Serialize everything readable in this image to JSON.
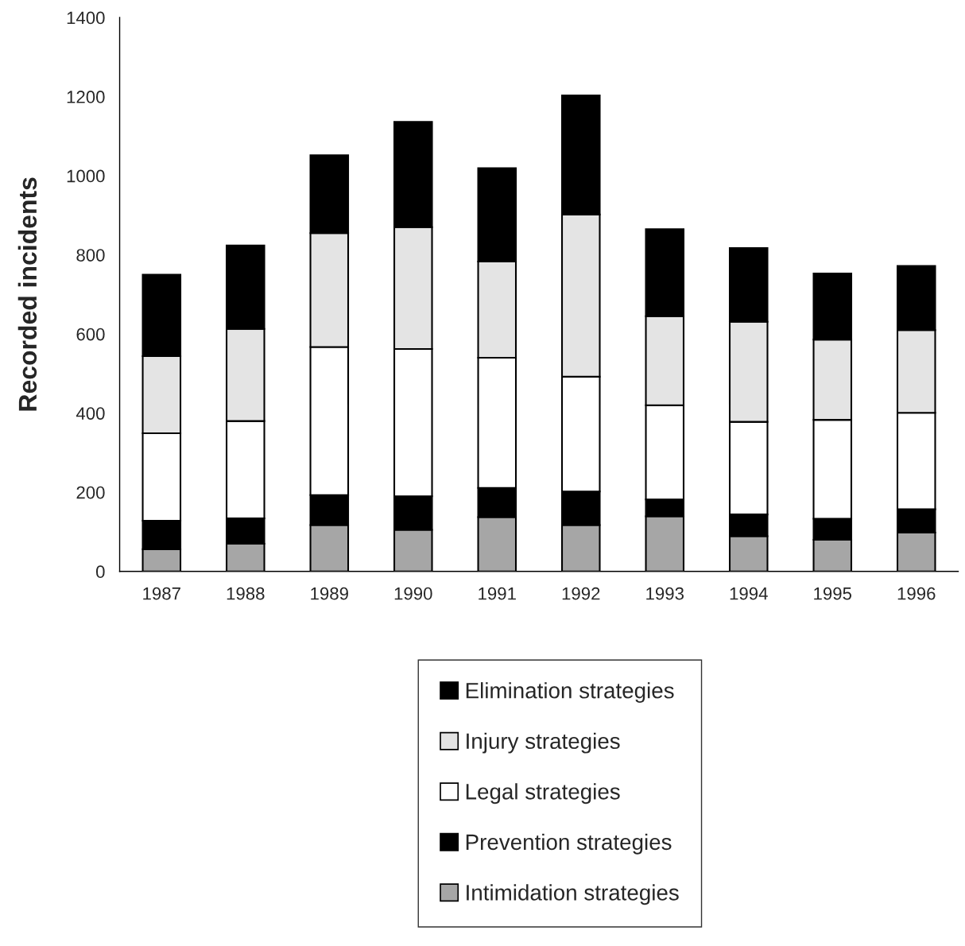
{
  "chart_data": {
    "type": "bar",
    "stacked": true,
    "ylabel": "Recorded incidents",
    "categories": [
      "1987",
      "1988",
      "1989",
      "1990",
      "1991",
      "1992",
      "1993",
      "1994",
      "1995",
      "1996"
    ],
    "ylim": [
      0,
      1400
    ],
    "yticks": [
      0,
      200,
      400,
      600,
      800,
      1000,
      1200,
      1400
    ],
    "grid": false,
    "legend": "bottom",
    "series": [
      {
        "name": "Intimidation strategies",
        "color": "#a6a6a6",
        "values": [
          56,
          70,
          117,
          105,
          137,
          117,
          139,
          89,
          80,
          98
        ]
      },
      {
        "name": "Prevention strategies",
        "color": "#000000",
        "values": [
          72,
          64,
          76,
          85,
          74,
          85,
          43,
          55,
          53,
          59
        ]
      },
      {
        "name": "Legal strategies",
        "color": "#ffffff",
        "values": [
          221,
          246,
          374,
          372,
          329,
          290,
          238,
          234,
          250,
          244
        ]
      },
      {
        "name": "Injury strategies",
        "color": "#e4e4e4",
        "values": [
          195,
          233,
          288,
          308,
          243,
          410,
          225,
          253,
          203,
          209
        ]
      },
      {
        "name": "Elimination strategies",
        "color": "#000000",
        "values": [
          206,
          211,
          197,
          266,
          236,
          301,
          220,
          186,
          167,
          162
        ]
      }
    ]
  }
}
